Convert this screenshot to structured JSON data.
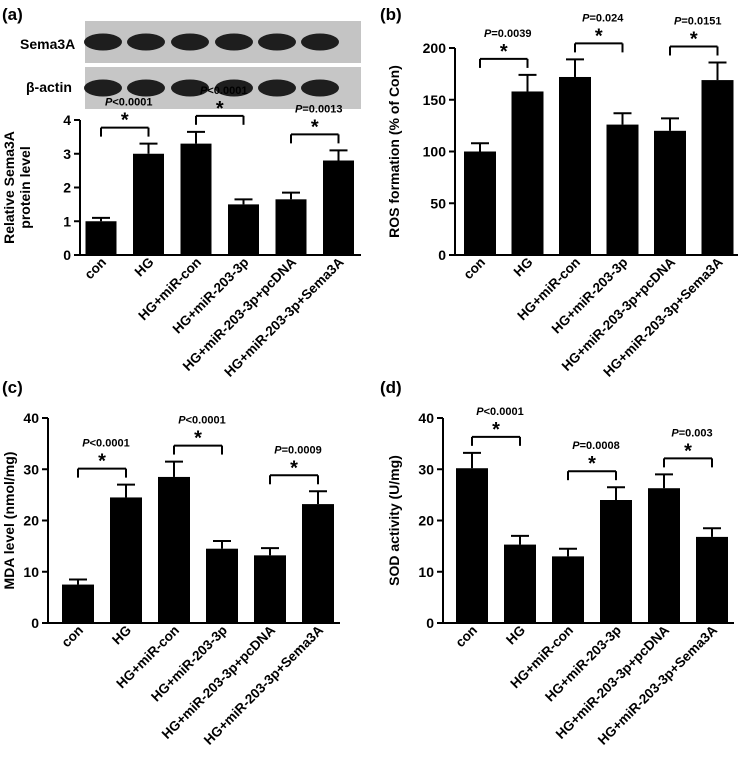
{
  "panel_labels": [
    "(a)",
    "(b)",
    "(c)",
    "(d)"
  ],
  "blot": {
    "rows": [
      {
        "label": "Sema3A"
      },
      {
        "label": "β-actin"
      }
    ]
  },
  "chart_data": [
    {
      "panel": "(a)",
      "type": "bar",
      "categories": [
        "con",
        "HG",
        "HG+miR-con",
        "HG+miR-203-3p",
        "HG+miR-203-3p+pcDNA",
        "HG+miR-203-3p+Sema3A"
      ],
      "values": [
        1.0,
        3.0,
        3.3,
        1.5,
        1.65,
        2.8
      ],
      "errors": [
        0.1,
        0.3,
        0.35,
        0.15,
        0.2,
        0.3
      ],
      "ylabel_lines": [
        "Relative Sema3A",
        "protein level"
      ],
      "ylim": [
        0,
        4
      ],
      "yticks": [
        "0",
        "1",
        "2",
        "3",
        "4"
      ],
      "comparisons": [
        {
          "from": 0,
          "to": 1,
          "star": "*",
          "p_text": "P<0.0001"
        },
        {
          "from": 2,
          "to": 3,
          "star": "*",
          "p_text": "P<0.0001"
        },
        {
          "from": 4,
          "to": 5,
          "star": "*",
          "p_text": "P=0.0013"
        }
      ]
    },
    {
      "panel": "(b)",
      "type": "bar",
      "categories": [
        "con",
        "HG",
        "HG+miR-con",
        "HG+miR-203-3p",
        "HG+miR-203-3p+pcDNA",
        "HG+miR-203-3p+Sema3A"
      ],
      "values": [
        100,
        158,
        172,
        126,
        120,
        169
      ],
      "errors": [
        8,
        16,
        17,
        11,
        12,
        17
      ],
      "ylabel": "ROS formation (% of Con)",
      "ylim": [
        0,
        200
      ],
      "yticks": [
        "0",
        "50",
        "100",
        "150",
        "200"
      ],
      "comparisons": [
        {
          "from": 0,
          "to": 1,
          "star": "*",
          "p_text": "P=0.0039"
        },
        {
          "from": 2,
          "to": 3,
          "star": "*",
          "p_text": "P=0.024"
        },
        {
          "from": 4,
          "to": 5,
          "star": "*",
          "p_text": "P=0.0151"
        }
      ]
    },
    {
      "panel": "(c)",
      "type": "bar",
      "categories": [
        "con",
        "HG",
        "HG+miR-con",
        "HG+miR-203-3p",
        "HG+miR-203-3p+pcDNA",
        "HG+miR-203-3p+Sema3A"
      ],
      "values": [
        7.5,
        24.5,
        28.5,
        14.5,
        13.2,
        23.2
      ],
      "errors": [
        1.0,
        2.5,
        3.0,
        1.5,
        1.4,
        2.5
      ],
      "ylabel": "MDA level (nmol/mg)",
      "ylim": [
        0,
        40
      ],
      "yticks": [
        "0",
        "10",
        "20",
        "30",
        "40"
      ],
      "comparisons": [
        {
          "from": 0,
          "to": 1,
          "star": "*",
          "p_text": "P<0.0001"
        },
        {
          "from": 2,
          "to": 3,
          "star": "*",
          "p_text": "P<0.0001"
        },
        {
          "from": 4,
          "to": 5,
          "star": "*",
          "p_text": "P=0.0009"
        }
      ]
    },
    {
      "panel": "(d)",
      "type": "bar",
      "categories": [
        "con",
        "HG",
        "HG+miR-con",
        "HG+miR-203-3p",
        "HG+miR-203-3p+pcDNA",
        "HG+miR-203-3p+Sema3A"
      ],
      "values": [
        30.2,
        15.3,
        13.0,
        24.0,
        26.3,
        16.8
      ],
      "errors": [
        3.0,
        1.7,
        1.5,
        2.5,
        2.7,
        1.7
      ],
      "ylabel": "SOD activity (U/mg)",
      "ylim": [
        0,
        40
      ],
      "yticks": [
        "0",
        "10",
        "20",
        "30",
        "40"
      ],
      "comparisons": [
        {
          "from": 0,
          "to": 1,
          "star": "*",
          "p_text": "P<0.0001"
        },
        {
          "from": 2,
          "to": 3,
          "star": "*",
          "p_text": "P=0.0008"
        },
        {
          "from": 4,
          "to": 5,
          "star": "*",
          "p_text": "P=0.003"
        }
      ]
    }
  ]
}
